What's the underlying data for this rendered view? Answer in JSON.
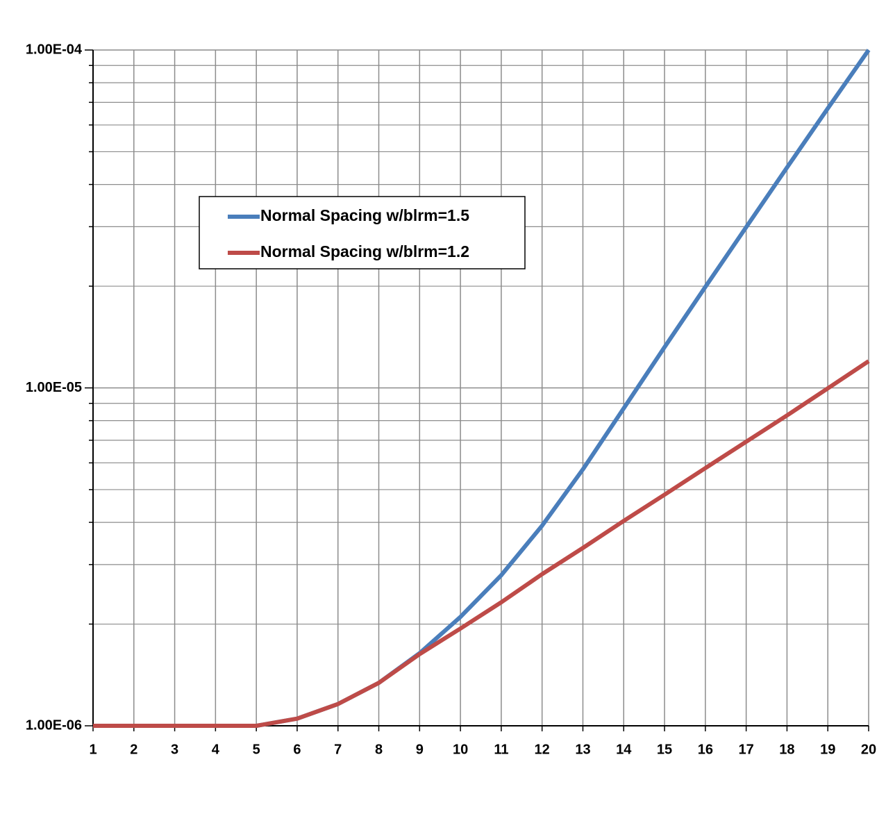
{
  "chart_data": {
    "type": "line",
    "x": [
      1,
      2,
      3,
      4,
      5,
      6,
      7,
      8,
      9,
      10,
      11,
      12,
      13,
      14,
      15,
      16,
      17,
      18,
      19,
      20
    ],
    "series": [
      {
        "name": "Normal Spacing w/blrm=1.5",
        "color": "#4a7ebb",
        "values": [
          1e-06,
          1e-06,
          1e-06,
          1e-06,
          1e-06,
          1.05e-06,
          1.16e-06,
          1.34e-06,
          1.64e-06,
          2.1e-06,
          2.79e-06,
          3.91e-06,
          5.74e-06,
          8.7e-06,
          1.32e-05,
          1.99e-05,
          2.99e-05,
          4.49e-05,
          6.72e-05,
          0.0001
        ]
      },
      {
        "name": "Normal Spacing w/blrm=1.2",
        "color": "#be4b48",
        "values": [
          1e-06,
          1e-06,
          1e-06,
          1e-06,
          1e-06,
          1.05e-06,
          1.16e-06,
          1.34e-06,
          1.63e-06,
          1.94e-06,
          2.32e-06,
          2.81e-06,
          3.36e-06,
          4.04e-06,
          4.83e-06,
          5.79e-06,
          6.93e-06,
          8.29e-06,
          9.97e-06,
          1.2e-05
        ]
      }
    ],
    "xlim": [
      1,
      20
    ],
    "xticks": [
      1,
      2,
      3,
      4,
      5,
      6,
      7,
      8,
      9,
      10,
      11,
      12,
      13,
      14,
      15,
      16,
      17,
      18,
      19,
      20
    ],
    "ylim": [
      1e-06,
      0.0001
    ],
    "yticks": [
      {
        "value": 1e-06,
        "label": "1.00E-06"
      },
      {
        "value": 1e-05,
        "label": "1.00E-05"
      },
      {
        "value": 0.0001,
        "label": "1.00E-04"
      }
    ],
    "minor_yticks": [
      2e-06,
      3e-06,
      4e-06,
      5e-06,
      6e-06,
      7e-06,
      8e-06,
      9e-06,
      2e-05,
      3e-05,
      4e-05,
      5e-05,
      6e-05,
      7e-05,
      8e-05,
      9e-05
    ],
    "log_y": true,
    "grid": true,
    "legend": "upper left"
  }
}
